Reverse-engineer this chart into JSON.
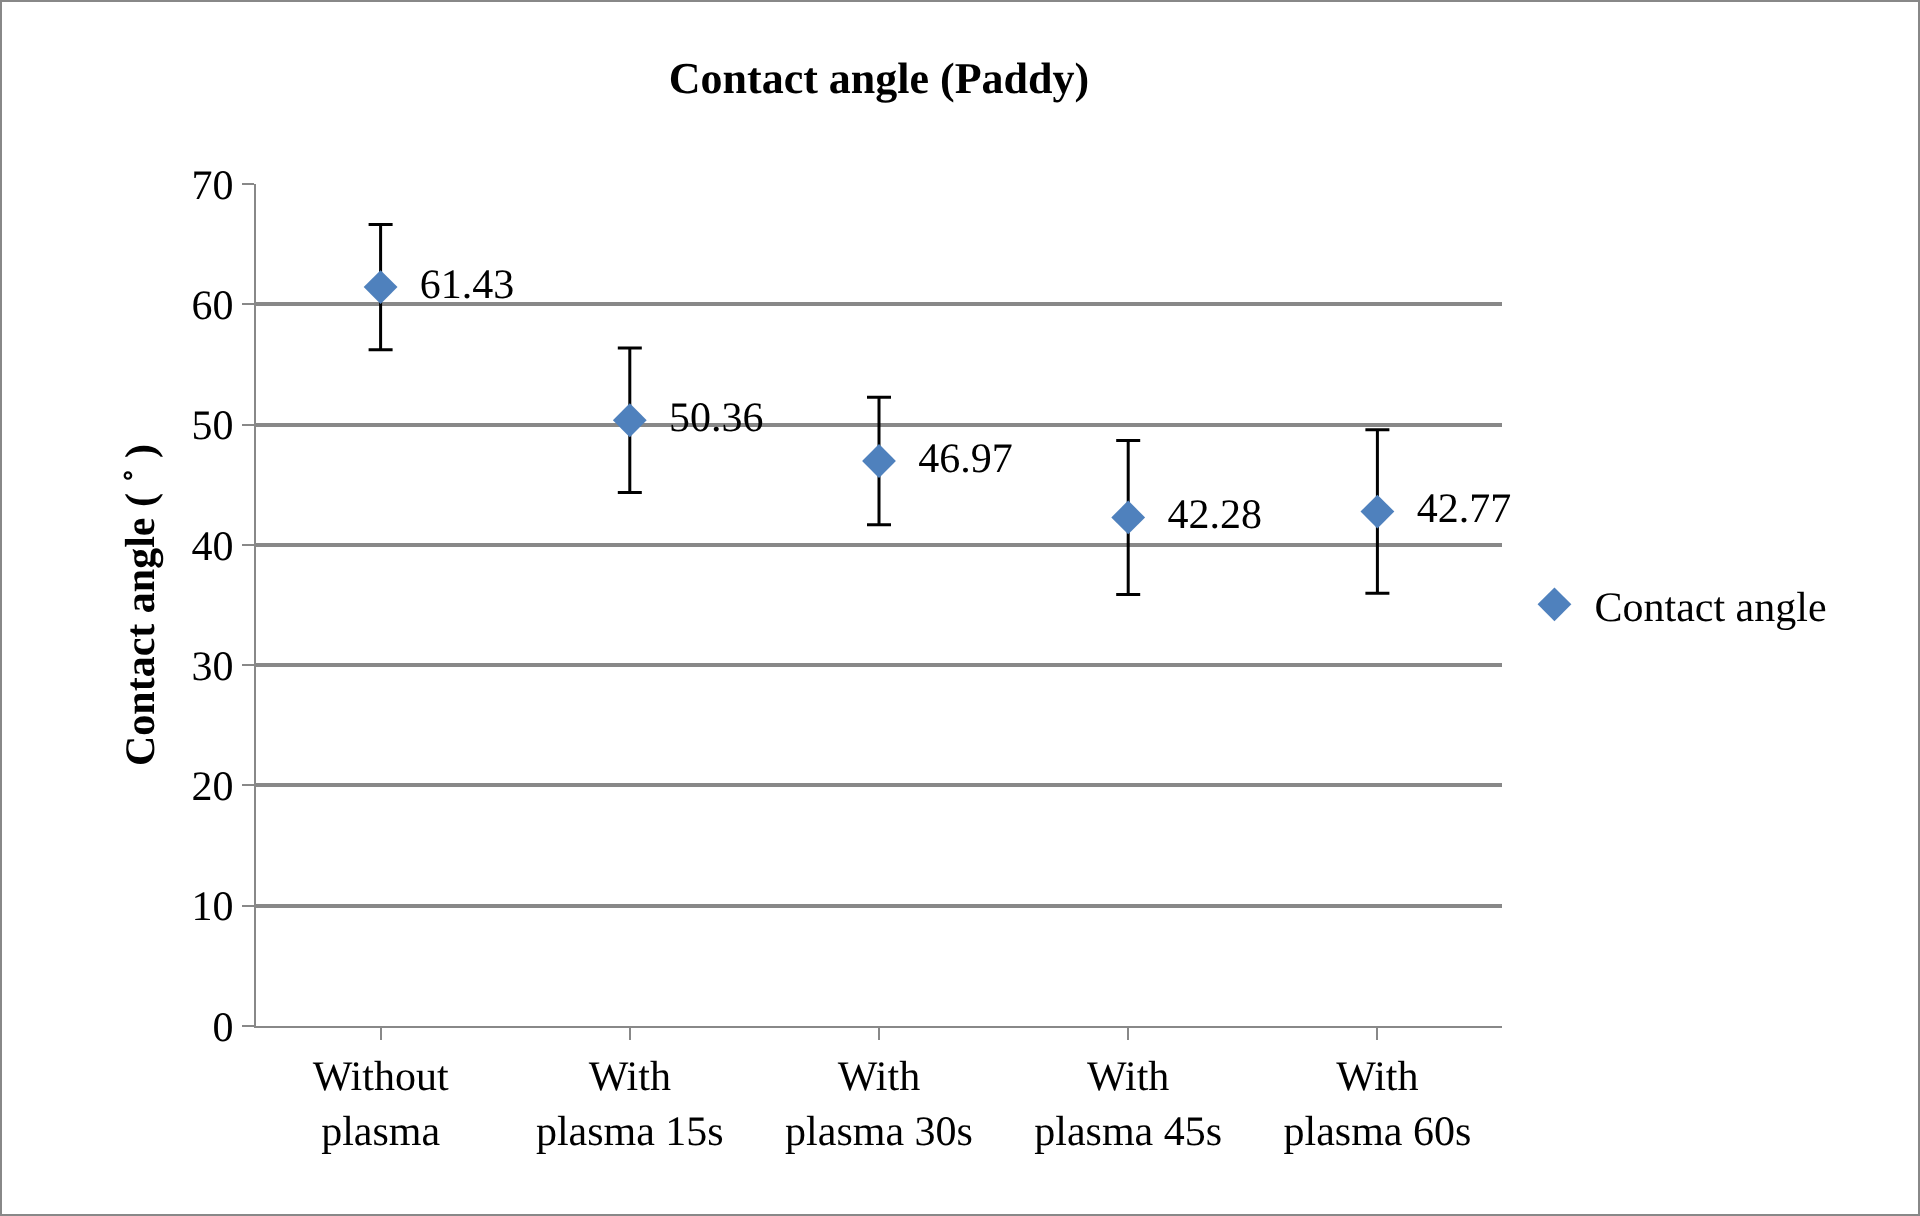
{
  "chart_data": {
    "type": "scatter",
    "title": "Contact angle (Paddy)",
    "ylabel": "Contact angle ( ˚ )",
    "categories": [
      "Without plasma",
      "With plasma 15s",
      "With plasma 30s",
      "With plasma 45s",
      "With plasma 60s"
    ],
    "series": [
      {
        "name": "Contact angle",
        "color": "#4f81bd",
        "values": [
          61.43,
          50.36,
          46.97,
          42.28,
          42.77
        ],
        "errors": [
          5.2,
          6.0,
          5.3,
          6.4,
          6.8
        ]
      }
    ],
    "ylim": [
      0,
      70
    ],
    "yticks": [
      0,
      10,
      20,
      30,
      40,
      50,
      60,
      70
    ],
    "grid": "y",
    "legend": "right",
    "marker": "diamond",
    "data_labels": true
  }
}
